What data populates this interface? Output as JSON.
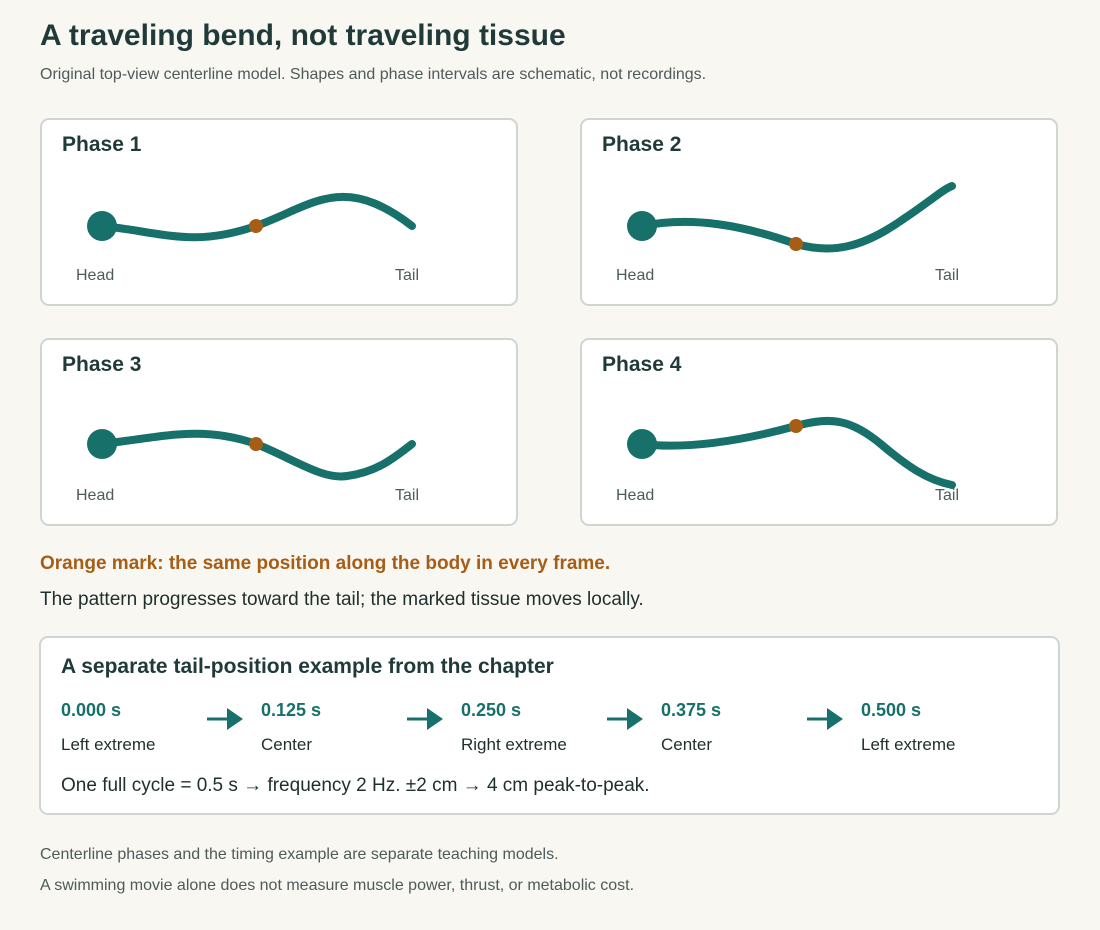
{
  "title": "A traveling bend, not traveling tissue",
  "subtitle": "Original top-view centerline model. Shapes and phase intervals are schematic, not recordings.",
  "colors": {
    "body": "#17706a",
    "marker": "#a65d16"
  },
  "phases": [
    {
      "title": "Phase 1",
      "head_label": "Head",
      "tail_label": "Tail"
    },
    {
      "title": "Phase 2",
      "head_label": "Head",
      "tail_label": "Tail"
    },
    {
      "title": "Phase 3",
      "head_label": "Head",
      "tail_label": "Tail"
    },
    {
      "title": "Phase 4",
      "head_label": "Head",
      "tail_label": "Tail"
    }
  ],
  "marker_note": "Orange mark: the same position along the body in every frame.",
  "progress_note": "The pattern progresses toward the tail; the marked tissue moves locally.",
  "timing": {
    "title": "A separate tail-position example from the chapter",
    "steps": [
      {
        "time": "0.000 s",
        "label": "Left extreme"
      },
      {
        "time": "0.125 s",
        "label": "Center"
      },
      {
        "time": "0.250 s",
        "label": "Right extreme"
      },
      {
        "time": "0.375 s",
        "label": "Center"
      },
      {
        "time": "0.500 s",
        "label": "Left extreme"
      }
    ],
    "summary": "One full cycle = 0.5 s → frequency 2 Hz. ±2 cm → 4 cm peak-to-peak."
  },
  "footer": [
    "Centerline phases and the timing example are separate teaching models.",
    "A swimming movie alone does not measure muscle power, thrust, or metabolic cost."
  ]
}
